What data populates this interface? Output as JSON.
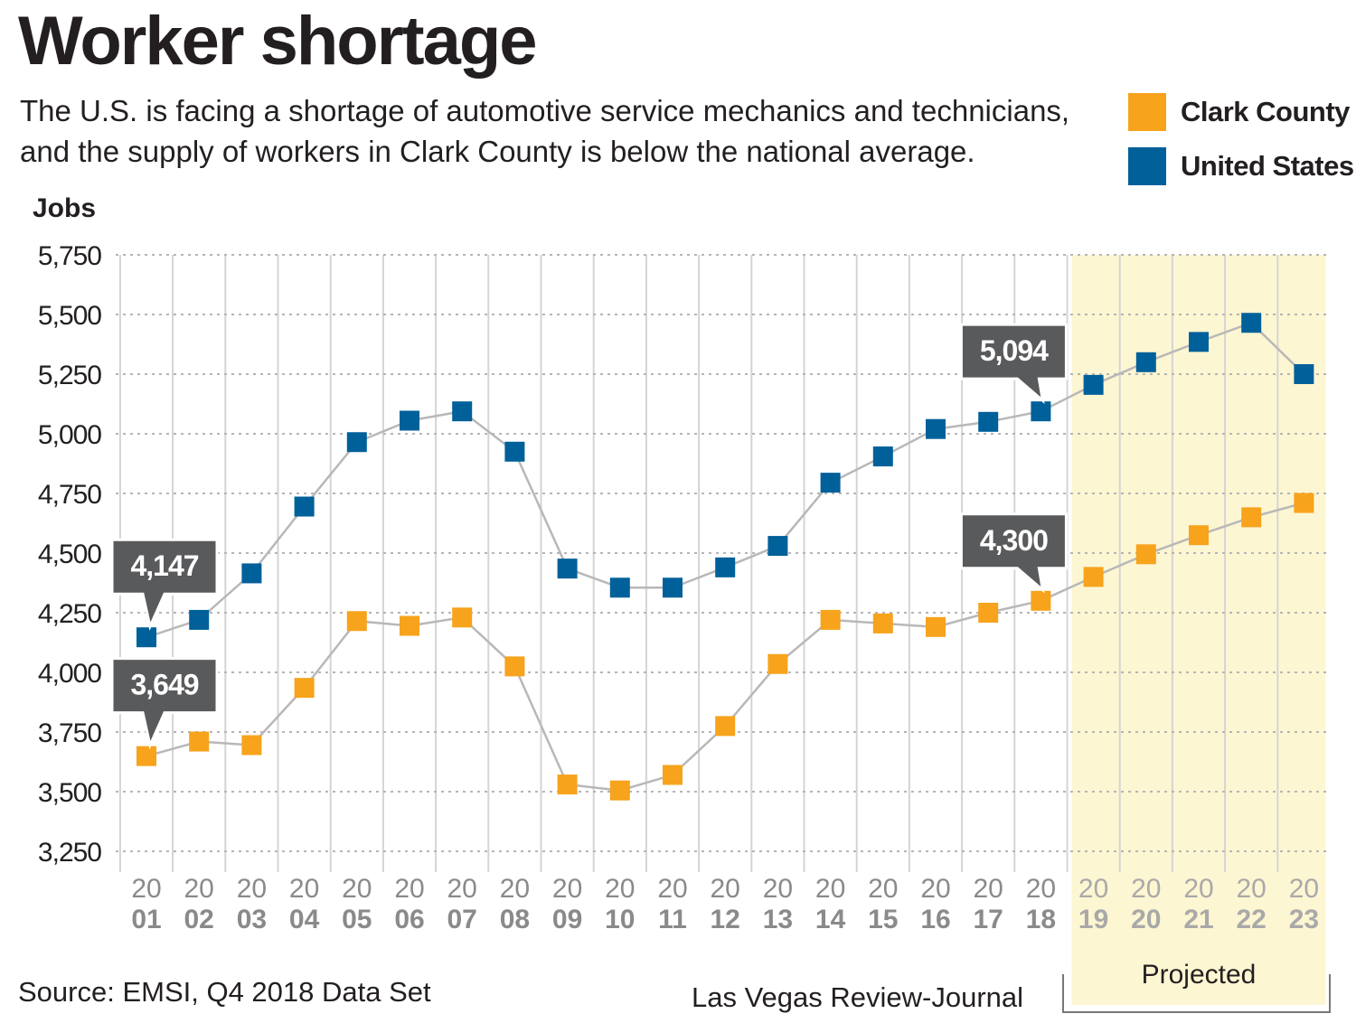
{
  "header": {
    "title": "Worker shortage",
    "subtitle": "The U.S. is facing a shortage of automotive service mechanics and technicians, and the supply of workers in Clark County is below the national average."
  },
  "legend": [
    {
      "label": "Clark County",
      "color": "#f7a31c"
    },
    {
      "label": "United States",
      "color": "#00609a"
    }
  ],
  "footer": {
    "source": "Source: EMSI, Q4 2018 Data Set",
    "credit": "Las Vegas Review-Journal"
  },
  "chart_data": {
    "type": "line",
    "ylabel": "Jobs",
    "ylim": [
      3250,
      5750
    ],
    "yticks": [
      3250,
      3500,
      3750,
      4000,
      4250,
      4500,
      4750,
      5000,
      5250,
      5500,
      5750
    ],
    "ytick_labels": [
      "3,250",
      "3,500",
      "3,750",
      "4,000",
      "4,250",
      "4,500",
      "4,750",
      "5,000",
      "5,250",
      "5,500",
      "5,750"
    ],
    "x": [
      "2001",
      "2002",
      "2003",
      "2004",
      "2005",
      "2006",
      "2007",
      "2008",
      "2009",
      "2010",
      "2011",
      "2012",
      "2013",
      "2014",
      "2015",
      "2016",
      "2017",
      "2018",
      "2019",
      "2020",
      "2021",
      "2022",
      "2023"
    ],
    "x_tick_top": [
      "20",
      "20",
      "20",
      "20",
      "20",
      "20",
      "20",
      "20",
      "20",
      "20",
      "20",
      "20",
      "20",
      "20",
      "20",
      "20",
      "20",
      "20",
      "20",
      "20",
      "20",
      "20",
      "20"
    ],
    "x_tick_bottom": [
      "01",
      "02",
      "03",
      "04",
      "05",
      "06",
      "07",
      "08",
      "09",
      "10",
      "11",
      "12",
      "13",
      "14",
      "15",
      "16",
      "17",
      "18",
      "19",
      "20",
      "21",
      "22",
      "23"
    ],
    "grid": true,
    "projected_label": "Projected",
    "projected_start_index": 18,
    "series": [
      {
        "name": "United States",
        "color": "#00609a",
        "values": [
          4147,
          4220,
          4415,
          4695,
          4965,
          5055,
          5094,
          4925,
          4435,
          4355,
          4355,
          4440,
          4530,
          4795,
          4905,
          5020,
          5050,
          5094,
          5205,
          5300,
          5385,
          5465,
          5250
        ]
      },
      {
        "name": "Clark County",
        "color": "#f7a31c",
        "values": [
          3649,
          3710,
          3695,
          3935,
          4215,
          4195,
          4230,
          4025,
          3530,
          3505,
          3570,
          3775,
          4035,
          4220,
          4205,
          4190,
          4250,
          4300,
          4400,
          4495,
          4575,
          4650,
          4710
        ]
      }
    ],
    "callouts": [
      {
        "series": 0,
        "index": 0,
        "label": "4,147"
      },
      {
        "series": 1,
        "index": 0,
        "label": "3,649"
      },
      {
        "series": 0,
        "index": 17,
        "label": "5,094"
      },
      {
        "series": 1,
        "index": 17,
        "label": "4,300"
      }
    ],
    "colors": {
      "line": "#b8b8b8",
      "grid": "#b5b5b5",
      "projected_bg": "#fdf6d2",
      "callout": "#595a5c",
      "tick": "#8a8a8a",
      "tick_projected": "#a9a9a9"
    }
  }
}
